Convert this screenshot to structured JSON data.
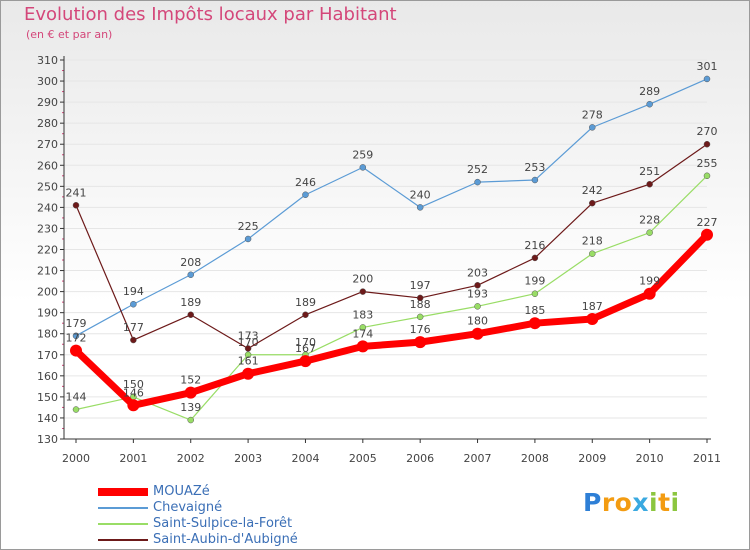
{
  "title": "Evolution des Impôts locaux par Habitant",
  "subtitle": "(en € et par an)",
  "brand": {
    "p": "P",
    "ro": "ro",
    "x": "x",
    "i": "i",
    "t": "t",
    "i2": "i"
  },
  "colors": {
    "title": "#d4477a",
    "axis": "#333333",
    "label": "#444444",
    "grid": "#e6e6e6",
    "minor_tick": "#d4477a"
  },
  "chart_data": {
    "type": "line",
    "title": "Evolution des Impôts locaux par Habitant",
    "subtitle": "(en € et par an)",
    "xlabel": "",
    "ylabel": "",
    "x": [
      "2000",
      "2001",
      "2002",
      "2003",
      "2004",
      "2005",
      "2006",
      "2007",
      "2008",
      "2009",
      "2010",
      "2011"
    ],
    "ylim": [
      130,
      310
    ],
    "yticks": [
      130,
      140,
      150,
      160,
      170,
      180,
      190,
      200,
      210,
      220,
      230,
      240,
      250,
      260,
      270,
      280,
      290,
      300,
      310
    ],
    "series": [
      {
        "name": "MOUAZé",
        "color": "#ff0000",
        "width": 7,
        "values": [
          172,
          146,
          152,
          161,
          167,
          174,
          176,
          180,
          185,
          187,
          199,
          227
        ]
      },
      {
        "name": "Chevaigné",
        "color": "#5b9bd5",
        "width": 1.2,
        "values": [
          179,
          194,
          208,
          225,
          246,
          259,
          240,
          252,
          253,
          278,
          289,
          301
        ]
      },
      {
        "name": "Saint-Sulpice-la-Forêt",
        "color": "#99dd66",
        "width": 1.2,
        "values": [
          144,
          150,
          139,
          170,
          170,
          183,
          188,
          193,
          199,
          218,
          228,
          255
        ]
      },
      {
        "name": "Saint-Aubin-d'Aubigné",
        "color": "#6d1a1a",
        "width": 1.2,
        "values": [
          241,
          177,
          189,
          173,
          189,
          200,
          197,
          203,
          216,
          242,
          251,
          270
        ]
      }
    ],
    "legend_position": "bottom-left"
  }
}
